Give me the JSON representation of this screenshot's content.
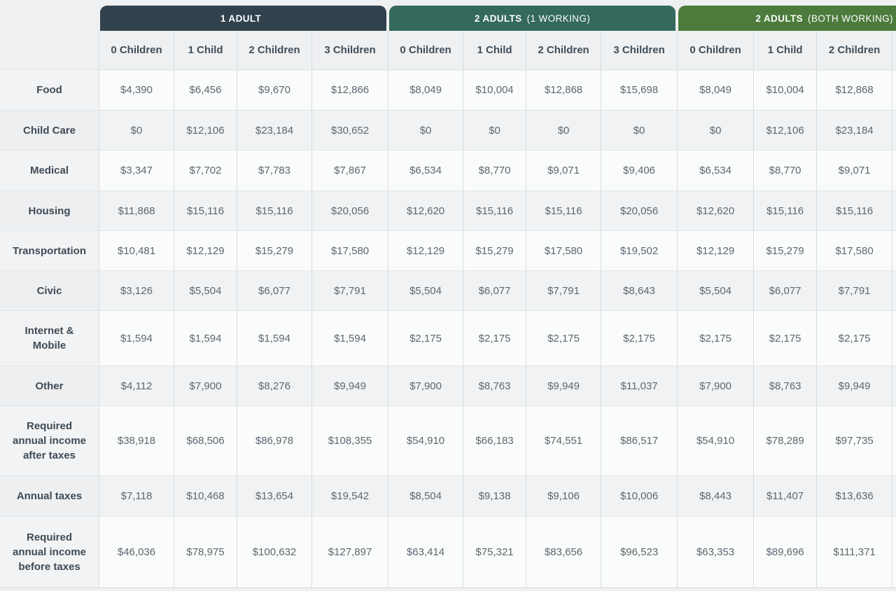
{
  "colors": {
    "page_background": "#eef0f1",
    "tab_1_adult": "#31414d",
    "tab_2_adults_1_working": "#34695b",
    "tab_2_adults_both_working": "#4c7b3c",
    "header_background": "#eef0f2",
    "row_white": "#fafbfb",
    "row_gray": "#f0f2f3",
    "label_text": "#3e4b55",
    "value_text": "#5d6770"
  },
  "chart_data": {
    "type": "table",
    "column_groups": [
      {
        "label": "1 ADULT",
        "sublabel": "",
        "color": "#31414d",
        "columns": [
          "0 Children",
          "1 Child",
          "2 Children",
          "3 Children"
        ]
      },
      {
        "label": "2 ADULTS",
        "sublabel": "(1 WORKING)",
        "color": "#34695b",
        "columns": [
          "0 Children",
          "1 Child",
          "2 Children",
          "3 Children"
        ]
      },
      {
        "label": "2 ADULTS",
        "sublabel": "(BOTH WORKING)",
        "color": "#4c7b3c",
        "columns": [
          "0 Children",
          "1 Child",
          "2 Children",
          ""
        ]
      }
    ],
    "rows": [
      {
        "label": "Food",
        "values": [
          "$4,390",
          "$6,456",
          "$9,670",
          "$12,866",
          "$8,049",
          "$10,004",
          "$12,868",
          "$15,698",
          "$8,049",
          "$10,004",
          "$12,868",
          ""
        ]
      },
      {
        "label": "Child Care",
        "values": [
          "$0",
          "$12,106",
          "$23,184",
          "$30,652",
          "$0",
          "$0",
          "$0",
          "$0",
          "$0",
          "$12,106",
          "$23,184",
          ""
        ]
      },
      {
        "label": "Medical",
        "values": [
          "$3,347",
          "$7,702",
          "$7,783",
          "$7,867",
          "$6,534",
          "$8,770",
          "$9,071",
          "$9,406",
          "$6,534",
          "$8,770",
          "$9,071",
          ""
        ]
      },
      {
        "label": "Housing",
        "values": [
          "$11,868",
          "$15,116",
          "$15,116",
          "$20,056",
          "$12,620",
          "$15,116",
          "$15,116",
          "$20,056",
          "$12,620",
          "$15,116",
          "$15,116",
          ""
        ]
      },
      {
        "label": "Transportation",
        "values": [
          "$10,481",
          "$12,129",
          "$15,279",
          "$17,580",
          "$12,129",
          "$15,279",
          "$17,580",
          "$19,502",
          "$12,129",
          "$15,279",
          "$17,580",
          ""
        ]
      },
      {
        "label": "Civic",
        "values": [
          "$3,126",
          "$5,504",
          "$6,077",
          "$7,791",
          "$5,504",
          "$6,077",
          "$7,791",
          "$8,643",
          "$5,504",
          "$6,077",
          "$7,791",
          ""
        ]
      },
      {
        "label": "Internet & Mobile",
        "values": [
          "$1,594",
          "$1,594",
          "$1,594",
          "$1,594",
          "$2,175",
          "$2,175",
          "$2,175",
          "$2,175",
          "$2,175",
          "$2,175",
          "$2,175",
          ""
        ]
      },
      {
        "label": "Other",
        "values": [
          "$4,112",
          "$7,900",
          "$8,276",
          "$9,949",
          "$7,900",
          "$8,763",
          "$9,949",
          "$11,037",
          "$7,900",
          "$8,763",
          "$9,949",
          ""
        ]
      },
      {
        "label": "Required annual income after taxes",
        "values": [
          "$38,918",
          "$68,506",
          "$86,978",
          "$108,355",
          "$54,910",
          "$66,183",
          "$74,551",
          "$86,517",
          "$54,910",
          "$78,289",
          "$97,735",
          ""
        ]
      },
      {
        "label": "Annual taxes",
        "values": [
          "$7,118",
          "$10,468",
          "$13,654",
          "$19,542",
          "$8,504",
          "$9,138",
          "$9,106",
          "$10,006",
          "$8,443",
          "$11,407",
          "$13,636",
          ""
        ]
      },
      {
        "label": "Required annual income before taxes",
        "values": [
          "$46,036",
          "$78,975",
          "$100,632",
          "$127,897",
          "$63,414",
          "$75,321",
          "$83,656",
          "$96,523",
          "$63,353",
          "$89,696",
          "$111,371",
          ""
        ]
      }
    ]
  }
}
